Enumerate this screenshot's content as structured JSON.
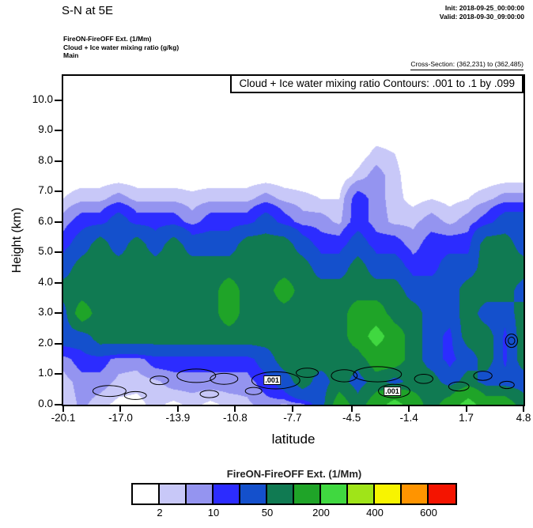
{
  "header": {
    "title": "S-N at 5E",
    "init_label": "Init: 2018-09-25_00:00:00",
    "valid_label": "Valid: 2018-09-30_09:00:00",
    "run_lines": [
      "FireON-FireOFF Ext.  (1/Mm)",
      "Cloud + Ice water mixing ratio  (g/kg)",
      "Main"
    ],
    "cross_section": "Cross-Section: (362,231) to (362,485)"
  },
  "plot": {
    "title_box": "Cloud + Ice water mixing ratio Contours: .001 to .1 by .099",
    "xlabel": "latitude",
    "ylabel": "Height (km)",
    "x_ticks": [
      "-20.1",
      "-17.0",
      "-13.9",
      "-10.8",
      "-7.7",
      "-4.5",
      "-1.4",
      "1.7",
      "4.8"
    ],
    "y_ticks": [
      "0.0",
      "1.0",
      "2.0",
      "3.0",
      "4.0",
      "5.0",
      "6.0",
      "7.0",
      "8.0",
      "9.0",
      "10.0"
    ]
  },
  "colorbar": {
    "title": "FireON-FireOFF Ext.  (1/Mm)",
    "tick_labels": [
      "2",
      "10",
      "50",
      "200",
      "400",
      "600"
    ],
    "levels": [
      2,
      5,
      10,
      20,
      50,
      100,
      200,
      300,
      400,
      500,
      600
    ],
    "colors": [
      "#ffffff",
      "#c8c8f8",
      "#9494f0",
      "#2c2cff",
      "#1450cc",
      "#107a52",
      "#1fa428",
      "#40d840",
      "#a0e418",
      "#f8f400",
      "#ff9400",
      "#f41400"
    ]
  },
  "chart_data": {
    "type": "filled_contour",
    "title": "FireON-FireOFF Ext. (1/Mm) cross-section S-N at 5E",
    "xlabel": "latitude",
    "ylabel": "Height (km)",
    "x_range": [
      -20.1,
      4.8
    ],
    "y_plot_max": 10.8,
    "units": "1/Mm",
    "grid": {
      "height_levels_km": [
        0,
        0.75,
        1.5,
        2.25,
        3,
        3.75,
        4.5,
        5.25,
        6,
        6.75,
        7.5,
        8.25,
        9,
        9.75,
        10.5
      ],
      "height_max": 10.5,
      "lat_min": -20.1,
      "lat_max": 4.8,
      "values": [
        [
          2,
          6,
          3,
          1,
          1,
          3,
          1,
          3,
          1,
          3,
          4,
          7,
          4,
          7,
          30,
          140,
          70,
          140,
          250,
          140,
          70,
          140,
          250,
          140,
          140,
          70
        ],
        [
          3,
          7,
          7,
          4,
          3,
          4,
          7,
          7,
          7,
          7,
          7,
          14,
          30,
          70,
          30,
          70,
          30,
          70,
          30,
          70,
          70,
          30,
          70,
          30,
          30,
          30
        ],
        [
          7,
          14,
          14,
          7,
          7,
          14,
          14,
          14,
          14,
          14,
          14,
          30,
          70,
          70,
          70,
          70,
          70,
          140,
          140,
          70,
          30,
          14,
          30,
          70,
          14,
          70
        ],
        [
          30,
          30,
          70,
          70,
          70,
          70,
          70,
          70,
          70,
          70,
          70,
          70,
          70,
          70,
          70,
          70,
          140,
          250,
          140,
          70,
          30,
          14,
          70,
          70,
          14,
          70
        ],
        [
          30,
          140,
          70,
          70,
          70,
          70,
          70,
          70,
          70,
          140,
          70,
          70,
          70,
          70,
          70,
          70,
          140,
          140,
          70,
          70,
          30,
          30,
          70,
          30,
          30,
          70
        ],
        [
          70,
          70,
          70,
          70,
          70,
          70,
          70,
          70,
          70,
          140,
          70,
          70,
          140,
          70,
          70,
          70,
          70,
          70,
          70,
          30,
          30,
          30,
          70,
          70,
          70,
          30
        ],
        [
          30,
          70,
          70,
          70,
          70,
          70,
          70,
          70,
          70,
          70,
          70,
          70,
          70,
          70,
          30,
          30,
          70,
          30,
          30,
          14,
          14,
          30,
          30,
          70,
          70,
          70
        ],
        [
          14,
          30,
          70,
          30,
          70,
          30,
          70,
          30,
          30,
          30,
          70,
          70,
          70,
          30,
          14,
          14,
          30,
          14,
          14,
          7,
          14,
          14,
          14,
          70,
          70,
          30
        ],
        [
          7,
          14,
          14,
          30,
          14,
          14,
          14,
          7,
          14,
          14,
          14,
          30,
          14,
          7,
          7,
          4,
          14,
          7,
          4,
          4,
          7,
          4,
          7,
          14,
          30,
          30
        ],
        [
          2,
          4,
          4,
          7,
          4,
          4,
          4,
          3,
          4,
          4,
          4,
          7,
          4,
          3,
          2,
          2,
          14,
          7,
          3,
          1,
          2,
          1,
          2,
          4,
          7,
          7
        ],
        [
          0,
          0,
          0,
          0,
          0,
          0,
          0,
          0,
          0,
          0,
          0,
          0,
          0,
          0,
          0,
          0,
          3,
          7,
          3,
          0,
          0,
          0,
          0,
          0,
          0,
          0
        ],
        [
          0,
          0,
          0,
          0,
          0,
          0,
          0,
          0,
          0,
          0,
          0,
          0,
          0,
          0,
          0,
          0,
          0,
          3,
          2,
          0,
          0,
          0,
          0,
          0,
          0,
          0
        ],
        [
          0,
          0,
          0,
          0,
          0,
          0,
          0,
          0,
          0,
          0,
          0,
          0,
          0,
          0,
          0,
          0,
          0,
          0,
          0,
          0,
          0,
          0,
          0,
          0,
          0,
          0
        ],
        [
          0,
          0,
          0,
          0,
          0,
          0,
          0,
          0,
          0,
          0,
          0,
          0,
          0,
          0,
          0,
          0,
          0,
          0,
          0,
          0,
          0,
          0,
          0,
          0,
          0,
          0
        ],
        [
          0,
          0,
          0,
          0,
          0,
          0,
          0,
          0,
          0,
          0,
          0,
          0,
          0,
          0,
          0,
          0,
          0,
          0,
          0,
          0,
          0,
          0,
          0,
          0,
          0,
          0
        ]
      ]
    },
    "overlay_contours": {
      "variable": "Cloud + Ice water mixing ratio (g/kg)",
      "levels": [
        0.001,
        0.1
      ],
      "blobs": [
        [
          -17.6,
          0.45,
          0.9,
          0.18
        ],
        [
          -16.2,
          0.3,
          0.6,
          0.13
        ],
        [
          -14.9,
          0.8,
          0.5,
          0.14
        ],
        [
          -12.9,
          0.95,
          1.05,
          0.22
        ],
        [
          -11.4,
          0.85,
          0.75,
          0.18
        ],
        [
          -12.2,
          0.35,
          0.5,
          0.12
        ],
        [
          -9.8,
          0.45,
          0.45,
          0.12
        ],
        [
          -8.6,
          0.8,
          1.3,
          0.28
        ],
        [
          -6.9,
          1.05,
          0.6,
          0.15
        ],
        [
          -4.9,
          0.95,
          0.7,
          0.2
        ],
        [
          -3.1,
          1.0,
          1.3,
          0.25
        ],
        [
          -2.2,
          0.45,
          0.85,
          0.22
        ],
        [
          -0.6,
          0.85,
          0.5,
          0.15
        ],
        [
          1.3,
          0.6,
          0.55,
          0.15
        ],
        [
          2.6,
          0.95,
          0.5,
          0.15
        ],
        [
          3.9,
          0.65,
          0.4,
          0.12
        ],
        [
          4.15,
          2.1,
          0.33,
          0.22
        ],
        [
          4.15,
          2.1,
          0.18,
          0.12
        ]
      ],
      "labels": [
        {
          "text": ".001",
          "lat": -8.8,
          "km": 0.8
        },
        {
          "text": ".001",
          "lat": -2.3,
          "km": 0.45
        }
      ]
    }
  }
}
